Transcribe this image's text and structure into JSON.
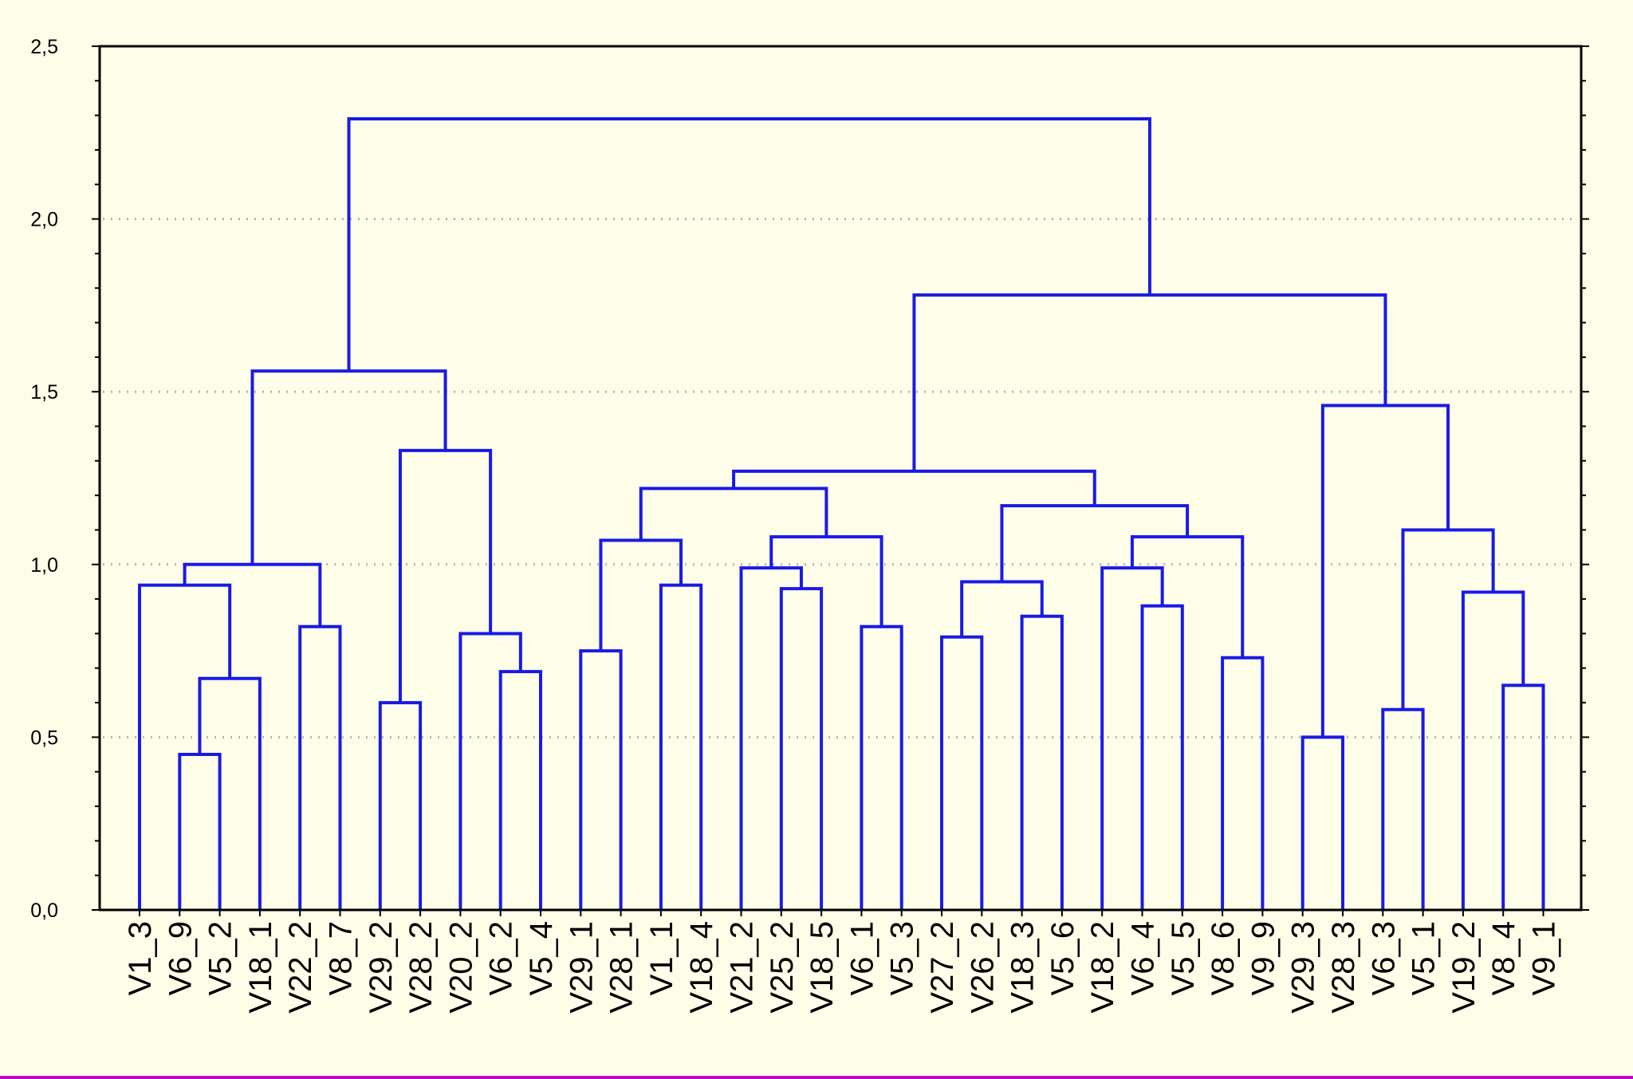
{
  "chart_data": {
    "type": "dendrogram",
    "title": "",
    "xlabel": "",
    "ylabel": "",
    "ylim": [
      0,
      2.5
    ],
    "yticks": [
      {
        "value": 0,
        "label": "0,0"
      },
      {
        "value": 0.5,
        "label": "0,5"
      },
      {
        "value": 1.0,
        "label": "1,0"
      },
      {
        "value": 1.5,
        "label": "1,5"
      },
      {
        "value": 2.0,
        "label": "2,0"
      },
      {
        "value": 2.5,
        "label": "2,5"
      }
    ],
    "grid": true,
    "line_color": "#1a1ae6",
    "leaves": [
      "V1_3",
      "V6_9",
      "V5_2",
      "V18_1",
      "V22_2",
      "V8_7",
      "V29_2",
      "V28_2",
      "V20_2",
      "V6_2",
      "V5_4",
      "V29_1",
      "V28_1",
      "V1_1",
      "V18_4",
      "V21_2",
      "V25_2",
      "V18_5",
      "V6_1",
      "V5_3",
      "V27_2",
      "V26_2",
      "V18_3",
      "V5_6",
      "V18_2",
      "V6_4",
      "V5_5",
      "V8_6",
      "V9_9",
      "V29_3",
      "V28_3",
      "V6_3",
      "V5_1",
      "V19_2",
      "V8_4",
      "V9_1"
    ],
    "merges": [
      {
        "left": "V6_9",
        "right": "V5_2",
        "height": 0.45
      },
      {
        "left": "V6_9+V5_2",
        "right": "V18_1",
        "height": 0.67
      },
      {
        "left": "V1_3",
        "right": "V6_9+V5_2+V18_1",
        "height": 0.94
      },
      {
        "left": "V22_2",
        "right": "V8_7",
        "height": 0.82
      },
      {
        "left": "V1_3..V18_1",
        "right": "V22_2+V8_7",
        "height": 1.0
      },
      {
        "left": "V29_2",
        "right": "V28_2",
        "height": 0.6
      },
      {
        "left": "V6_2",
        "right": "V5_4",
        "height": 0.69
      },
      {
        "left": "V20_2",
        "right": "V6_2+V5_4",
        "height": 0.8
      },
      {
        "left": "V29_2+V28_2",
        "right": "V20_2+V6_2+V5_4",
        "height": 1.33
      },
      {
        "left": "V1_3..V8_7",
        "right": "V29_2..V5_4",
        "height": 1.56
      },
      {
        "left": "V29_1",
        "right": "V28_1",
        "height": 0.75
      },
      {
        "left": "V1_1",
        "right": "V18_4",
        "height": 0.94
      },
      {
        "left": "V29_1+V28_1",
        "right": "V1_1+V18_4",
        "height": 1.07
      },
      {
        "left": "V25_2",
        "right": "V18_5",
        "height": 0.93
      },
      {
        "left": "V21_2",
        "right": "V25_2+V18_5",
        "height": 0.99
      },
      {
        "left": "V6_1",
        "right": "V5_3",
        "height": 0.82
      },
      {
        "left": "V21_2+V25_2+V18_5",
        "right": "V6_1+V5_3",
        "height": 1.08
      },
      {
        "left": "V29_1..V18_4",
        "right": "V21_2..V5_3",
        "height": 1.22
      },
      {
        "left": "V27_2",
        "right": "V26_2",
        "height": 0.79
      },
      {
        "left": "V18_3",
        "right": "V5_6",
        "height": 0.85
      },
      {
        "left": "V27_2+V26_2",
        "right": "V18_3+V5_6",
        "height": 0.95
      },
      {
        "left": "V6_4",
        "right": "V5_5",
        "height": 0.88
      },
      {
        "left": "V18_2",
        "right": "V6_4+V5_5",
        "height": 0.99
      },
      {
        "left": "V8_6",
        "right": "V9_9",
        "height": 0.73
      },
      {
        "left": "V18_2+V6_4+V5_5",
        "right": "V8_6+V9_9",
        "height": 1.08
      },
      {
        "left": "V27_2..V5_6",
        "right": "V18_2..V9_9",
        "height": 1.17
      },
      {
        "left": "V29_1..V5_3",
        "right": "V27_2..V9_9",
        "height": 1.27
      },
      {
        "left": "V29_3",
        "right": "V28_3",
        "height": 0.5
      },
      {
        "left": "V6_3",
        "right": "V5_1",
        "height": 0.58
      },
      {
        "left": "V8_4",
        "right": "V9_1",
        "height": 0.65
      },
      {
        "left": "V19_2",
        "right": "V8_4+V9_1",
        "height": 0.92
      },
      {
        "left": "V6_3+V5_1",
        "right": "V19_2+V8_4+V9_1",
        "height": 1.1
      },
      {
        "left": "V29_3+V28_3",
        "right": "V6_3..V9_1",
        "height": 1.46
      },
      {
        "left": "V29_1..V9_9",
        "right": "V29_3..V9_1",
        "height": 1.78
      },
      {
        "left": "V1_3..V5_4",
        "right": "V29_1..V9_1",
        "height": 2.29
      }
    ]
  }
}
